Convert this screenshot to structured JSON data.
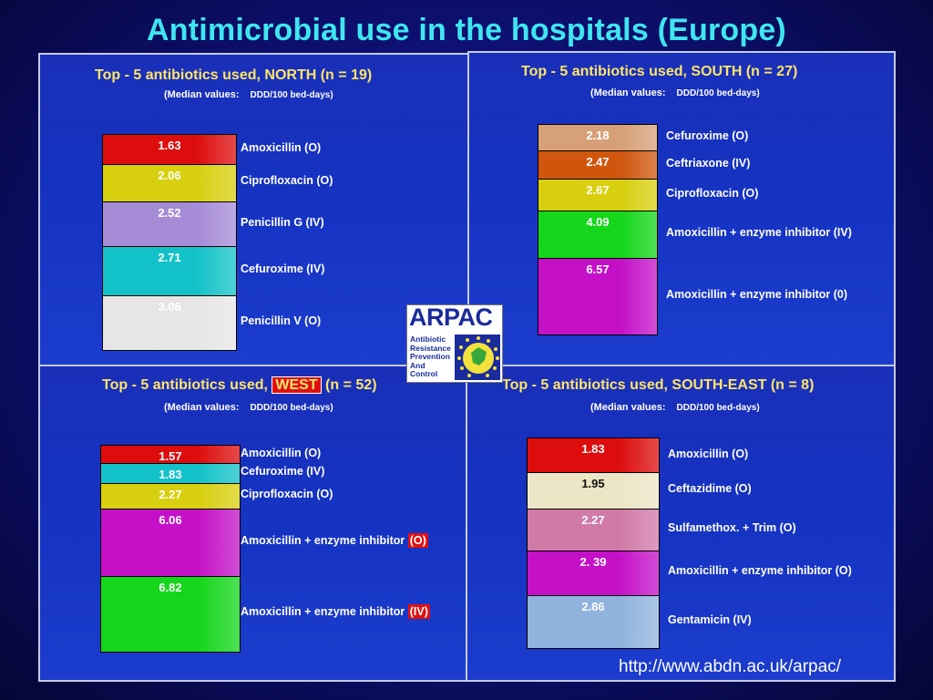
{
  "title": "Antimicrobial use in the hospitals (Europe)",
  "url": "http://www.abdn.ac.uk/arpac/",
  "logo": {
    "name": "ARPAC",
    "lines": [
      "Antibiotic",
      "Resistance",
      "Prevention",
      "And",
      "Control"
    ]
  },
  "chart_data": [
    {
      "type": "stacked-bar",
      "title_prefix": "Top - 5 antibiotics used,",
      "region": "NORTH",
      "title_suffix": "(n = 19)",
      "subtitle": "(Median values:",
      "unit": "DDD/100 bed-days)",
      "segments": [
        {
          "value": 1.63,
          "label": "1.63",
          "drug": "Amoxicillin (O)",
          "color": "#dd0d0d"
        },
        {
          "value": 2.06,
          "label": "2.06",
          "drug": "Ciprofloxacin (O)",
          "color": "#d8cf0e"
        },
        {
          "value": 2.52,
          "label": "2.52",
          "drug": "Penicillin G (IV)",
          "color": "#a68bd6"
        },
        {
          "value": 2.71,
          "label": "2.71",
          "drug": "Cefuroxime (IV)",
          "color": "#13c2c8"
        },
        {
          "value": 3.06,
          "label": "3.06",
          "drug": "Penicillin V (O)",
          "color": "#e6e6e6"
        }
      ]
    },
    {
      "type": "stacked-bar",
      "title_prefix": "Top - 5 antibiotics used,",
      "region": "SOUTH",
      "title_suffix": "(n = 27)",
      "subtitle": "(Median values:",
      "unit": "DDD/100 bed-days)",
      "segments": [
        {
          "value": 2.18,
          "label": "2.18",
          "drug": "Cefuroxime (O)",
          "color": "#d6a078"
        },
        {
          "value": 2.47,
          "label": "2.47",
          "drug": "Ceftriaxone (IV)",
          "color": "#d0560e"
        },
        {
          "value": 2.67,
          "label": "2.67",
          "drug": "Ciprofloxacin (O)",
          "color": "#d8cf0e"
        },
        {
          "value": 4.09,
          "label": "4.09",
          "drug": "Amoxicillin + enzyme inhibitor (IV)",
          "color": "#14d61a"
        },
        {
          "value": 6.57,
          "label": "6.57",
          "drug": "Amoxicillin + enzyme inhibitor (0)",
          "color": "#c411c8"
        }
      ]
    },
    {
      "type": "stacked-bar",
      "title_prefix": "Top - 5 antibiotics used,",
      "region": "WEST",
      "region_highlight": true,
      "title_suffix": "(n = 52)",
      "subtitle": "(Median values:",
      "unit": "DDD/100 bed-days)",
      "segments": [
        {
          "value": 1.57,
          "label": "1.57",
          "drug": "Amoxicillin (O)",
          "color": "#dd0d0d"
        },
        {
          "value": 1.83,
          "label": "1.83",
          "drug": "Cefuroxime (IV)",
          "color": "#13c2c8"
        },
        {
          "value": 2.27,
          "label": "2.27",
          "drug": "Ciprofloxacin (O)",
          "color": "#d8cf0e"
        },
        {
          "value": 6.06,
          "label": "6.06",
          "drug": "Amoxicillin + enzyme inhibitor",
          "tag": "(O)",
          "color": "#c411c8"
        },
        {
          "value": 6.82,
          "label": "6.82",
          "drug": "Amoxicillin + enzyme inhibitor",
          "tag": "(IV)",
          "color": "#14d61a"
        }
      ]
    },
    {
      "type": "stacked-bar",
      "title_prefix": "Top - 5 antibiotics used,",
      "region": "SOUTH-EAST",
      "title_suffix": "(n = 8)",
      "subtitle": "(Median values:",
      "unit": "DDD/100 bed-days)",
      "segments": [
        {
          "value": 1.83,
          "label": "1.83",
          "drug": "Amoxicillin (O)",
          "color": "#dd0d0d"
        },
        {
          "value": 1.95,
          "label": "1.95",
          "drug": "Ceftazidime (O)",
          "color": "#ece6c6",
          "dark_text": true
        },
        {
          "value": 2.27,
          "label": "2.27",
          "drug": "Sulfamethox. + Trim (O)",
          "color": "#d07aa8"
        },
        {
          "value": 2.39,
          "label": "2. 39",
          "drug": "Amoxicillin + enzyme inhibitor (O)",
          "color": "#c411c8"
        },
        {
          "value": 2.86,
          "label": "2.86",
          "drug": "Gentamicin (IV)",
          "color": "#8fb3dc"
        }
      ]
    }
  ]
}
